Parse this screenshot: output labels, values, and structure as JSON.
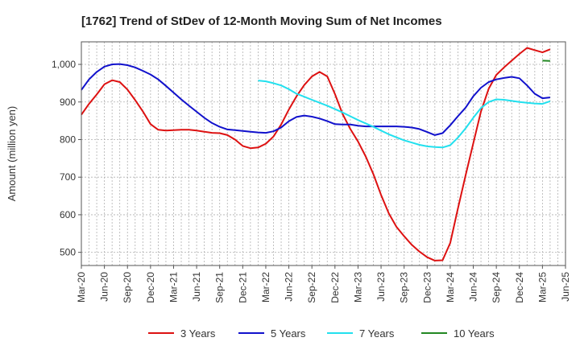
{
  "chart_data": {
    "type": "line",
    "title": "[1762]  Trend of StDev of 12-Month Moving Sum of Net Incomes",
    "xlabel": "",
    "ylabel": "Amount (million yen)",
    "ylim": [
      465,
      1060
    ],
    "y_ticks": [
      500,
      600,
      700,
      800,
      900,
      1000
    ],
    "y_tick_labels": [
      "500",
      "600",
      "700",
      "800",
      "900",
      "1,000"
    ],
    "x_ticks": [
      "Mar-20",
      "Jun-20",
      "Sep-20",
      "Dec-20",
      "Mar-21",
      "Jun-21",
      "Sep-21",
      "Dec-21",
      "Mar-22",
      "Jun-22",
      "Sep-22",
      "Dec-22",
      "Mar-23",
      "Jun-23",
      "Sep-23",
      "Dec-23",
      "Mar-24",
      "Jun-24",
      "Sep-24",
      "Dec-24",
      "Mar-25",
      "Jun-25"
    ],
    "grid": true,
    "legend_position": "bottom",
    "series": [
      {
        "name": "3 Years",
        "color": "#dd1111",
        "points": [
          [
            "2020-03",
            866
          ],
          [
            "2020-04",
            895
          ],
          [
            "2020-05",
            920
          ],
          [
            "2020-06",
            947
          ],
          [
            "2020-07",
            958
          ],
          [
            "2020-08",
            953
          ],
          [
            "2020-09",
            933
          ],
          [
            "2020-10",
            905
          ],
          [
            "2020-11",
            875
          ],
          [
            "2020-12",
            841
          ],
          [
            "2021-01",
            826
          ],
          [
            "2021-02",
            824
          ],
          [
            "2021-03",
            825
          ],
          [
            "2021-04",
            826
          ],
          [
            "2021-05",
            826
          ],
          [
            "2021-06",
            824
          ],
          [
            "2021-07",
            821
          ],
          [
            "2021-08",
            818
          ],
          [
            "2021-09",
            817
          ],
          [
            "2021-10",
            812
          ],
          [
            "2021-11",
            800
          ],
          [
            "2021-12",
            783
          ],
          [
            "2022-01",
            777
          ],
          [
            "2022-02",
            779
          ],
          [
            "2022-03",
            789
          ],
          [
            "2022-04",
            808
          ],
          [
            "2022-05",
            840
          ],
          [
            "2022-06",
            880
          ],
          [
            "2022-07",
            915
          ],
          [
            "2022-08",
            945
          ],
          [
            "2022-09",
            968
          ],
          [
            "2022-10",
            980
          ],
          [
            "2022-11",
            968
          ],
          [
            "2022-12",
            921
          ],
          [
            "2023-01",
            868
          ],
          [
            "2023-02",
            828
          ],
          [
            "2023-03",
            795
          ],
          [
            "2023-04",
            755
          ],
          [
            "2023-05",
            708
          ],
          [
            "2023-06",
            653
          ],
          [
            "2023-07",
            604
          ],
          [
            "2023-08",
            568
          ],
          [
            "2023-09",
            543
          ],
          [
            "2023-10",
            520
          ],
          [
            "2023-11",
            502
          ],
          [
            "2023-12",
            487
          ],
          [
            "2024-01",
            478
          ],
          [
            "2024-02",
            479
          ],
          [
            "2024-03",
            525
          ],
          [
            "2024-04",
            616
          ],
          [
            "2024-05",
            705
          ],
          [
            "2024-06",
            790
          ],
          [
            "2024-07",
            875
          ],
          [
            "2024-08",
            935
          ],
          [
            "2024-09",
            972
          ],
          [
            "2024-10",
            992
          ],
          [
            "2024-11",
            1010
          ],
          [
            "2024-12",
            1028
          ],
          [
            "2025-01",
            1044
          ],
          [
            "2025-02",
            1038
          ],
          [
            "2025-03",
            1032
          ],
          [
            "2025-04",
            1040
          ]
        ]
      },
      {
        "name": "5 Years",
        "color": "#1111cc",
        "points": [
          [
            "2020-03",
            932
          ],
          [
            "2020-04",
            960
          ],
          [
            "2020-05",
            980
          ],
          [
            "2020-06",
            994
          ],
          [
            "2020-07",
            1000
          ],
          [
            "2020-08",
            1001
          ],
          [
            "2020-09",
            998
          ],
          [
            "2020-10",
            992
          ],
          [
            "2020-11",
            983
          ],
          [
            "2020-12",
            973
          ],
          [
            "2021-01",
            960
          ],
          [
            "2021-02",
            943
          ],
          [
            "2021-03",
            925
          ],
          [
            "2021-04",
            907
          ],
          [
            "2021-05",
            890
          ],
          [
            "2021-06",
            874
          ],
          [
            "2021-07",
            858
          ],
          [
            "2021-08",
            844
          ],
          [
            "2021-09",
            834
          ],
          [
            "2021-10",
            827
          ],
          [
            "2021-11",
            825
          ],
          [
            "2021-12",
            823
          ],
          [
            "2022-01",
            821
          ],
          [
            "2022-02",
            819
          ],
          [
            "2022-03",
            818
          ],
          [
            "2022-04",
            822
          ],
          [
            "2022-05",
            832
          ],
          [
            "2022-06",
            849
          ],
          [
            "2022-07",
            860
          ],
          [
            "2022-08",
            864
          ],
          [
            "2022-09",
            861
          ],
          [
            "2022-10",
            856
          ],
          [
            "2022-11",
            849
          ],
          [
            "2022-12",
            841
          ],
          [
            "2023-01",
            840
          ],
          [
            "2023-02",
            840
          ],
          [
            "2023-03",
            837
          ],
          [
            "2023-04",
            835
          ],
          [
            "2023-05",
            835
          ],
          [
            "2023-06",
            835
          ],
          [
            "2023-07",
            835
          ],
          [
            "2023-08",
            835
          ],
          [
            "2023-09",
            834
          ],
          [
            "2023-10",
            832
          ],
          [
            "2023-11",
            828
          ],
          [
            "2023-12",
            820
          ],
          [
            "2024-01",
            812
          ],
          [
            "2024-02",
            817
          ],
          [
            "2024-03",
            838
          ],
          [
            "2024-04",
            862
          ],
          [
            "2024-05",
            885
          ],
          [
            "2024-06",
            915
          ],
          [
            "2024-07",
            938
          ],
          [
            "2024-08",
            953
          ],
          [
            "2024-09",
            960
          ],
          [
            "2024-10",
            964
          ],
          [
            "2024-11",
            967
          ],
          [
            "2024-12",
            963
          ],
          [
            "2025-01",
            944
          ],
          [
            "2025-02",
            922
          ],
          [
            "2025-03",
            910
          ],
          [
            "2025-04",
            912
          ]
        ]
      },
      {
        "name": "7 Years",
        "color": "#22e0ee",
        "points": [
          [
            "2022-02",
            957
          ],
          [
            "2022-03",
            955
          ],
          [
            "2022-04",
            950
          ],
          [
            "2022-05",
            944
          ],
          [
            "2022-06",
            934
          ],
          [
            "2022-07",
            922
          ],
          [
            "2022-08",
            914
          ],
          [
            "2022-09",
            906
          ],
          [
            "2022-10",
            898
          ],
          [
            "2022-11",
            890
          ],
          [
            "2022-12",
            881
          ],
          [
            "2023-01",
            872
          ],
          [
            "2023-02",
            862
          ],
          [
            "2023-03",
            852
          ],
          [
            "2023-04",
            843
          ],
          [
            "2023-05",
            834
          ],
          [
            "2023-06",
            824
          ],
          [
            "2023-07",
            814
          ],
          [
            "2023-08",
            806
          ],
          [
            "2023-09",
            798
          ],
          [
            "2023-10",
            792
          ],
          [
            "2023-11",
            786
          ],
          [
            "2023-12",
            782
          ],
          [
            "2024-01",
            780
          ],
          [
            "2024-02",
            779
          ],
          [
            "2024-03",
            785
          ],
          [
            "2024-04",
            805
          ],
          [
            "2024-05",
            830
          ],
          [
            "2024-06",
            858
          ],
          [
            "2024-07",
            884
          ],
          [
            "2024-08",
            900
          ],
          [
            "2024-09",
            907
          ],
          [
            "2024-10",
            906
          ],
          [
            "2024-11",
            903
          ],
          [
            "2024-12",
            900
          ],
          [
            "2025-01",
            898
          ],
          [
            "2025-02",
            896
          ],
          [
            "2025-03",
            895
          ],
          [
            "2025-04",
            902
          ]
        ]
      },
      {
        "name": "10 Years",
        "color": "#228822",
        "points": [
          [
            "2025-03",
            1010
          ],
          [
            "2025-04",
            1009
          ]
        ]
      }
    ]
  }
}
